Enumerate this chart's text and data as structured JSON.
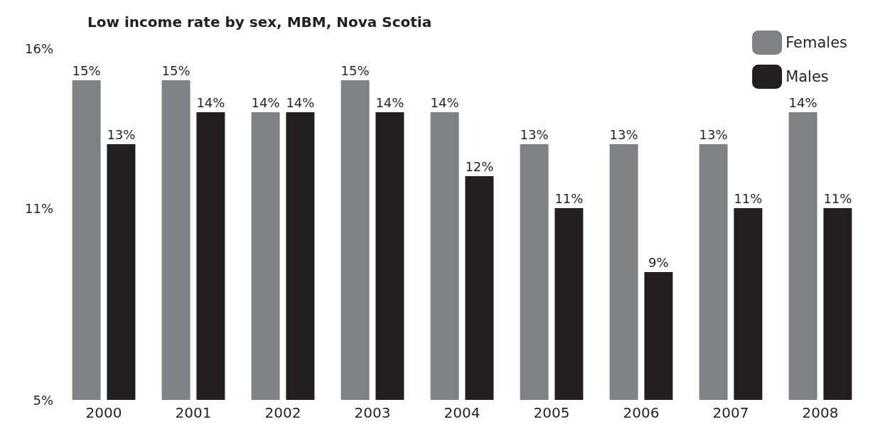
{
  "chart_data": {
    "type": "bar",
    "title": "Low income rate by sex, MBM, Nova Scotia",
    "categories": [
      "2000",
      "2001",
      "2002",
      "2003",
      "2004",
      "2005",
      "2006",
      "2007",
      "2008"
    ],
    "series": [
      {
        "name": "Females",
        "color": "#808184",
        "values": [
          15,
          15,
          14,
          15,
          14,
          13,
          13,
          13,
          14
        ],
        "value_labels": [
          "15%",
          "15%",
          "14%",
          "15%",
          "14%",
          "13%",
          "13%",
          "13%",
          "14%"
        ]
      },
      {
        "name": "Males",
        "color": "#231f20",
        "values": [
          13,
          14,
          14,
          14,
          12,
          11,
          9,
          11,
          11
        ],
        "value_labels": [
          "13%",
          "14%",
          "14%",
          "14%",
          "12%",
          "11%",
          "9%",
          "11%",
          "11%"
        ]
      }
    ],
    "ylim": [
      5,
      16
    ],
    "yticks": [
      {
        "value": 5,
        "label": "5%"
      },
      {
        "value": 11,
        "label": "11%"
      },
      {
        "value": 16,
        "label": "16%"
      }
    ],
    "grid": false,
    "legend": "top right"
  }
}
